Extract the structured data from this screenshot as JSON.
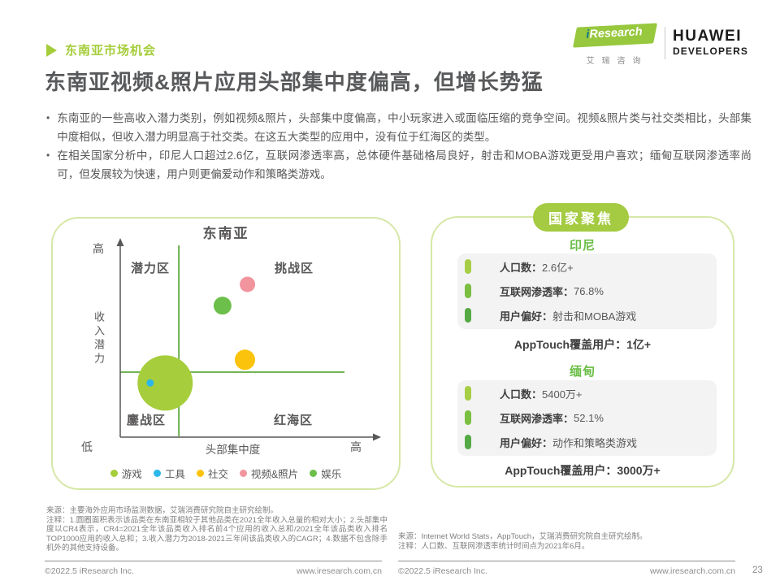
{
  "colors": {
    "accent_green": "#a5cd39",
    "divider_green": "#5ea83e",
    "panel_border_green": "#d6e7a6",
    "country_heading_green": "#6abd45",
    "badge_green": "#a4cb41"
  },
  "header": {
    "section_label": "东南亚市场机会",
    "title": "东南亚视频&照片应用头部集中度偏高，但增长势猛",
    "iresearch": {
      "i": "i",
      "name": "Research",
      "subtitle": "艾瑞咨询"
    },
    "huawei": {
      "line1": "HUAWEI",
      "line2": "DEVELOPERS"
    }
  },
  "bullets": [
    "东南亚的一些高收入潜力类别，例如视频&照片，头部集中度偏高，中小玩家进入或面临压缩的竞争空间。视频&照片类与社交类相比，头部集中度相似，但收入潜力明显高于社交类。在这五大类型的应用中，没有位于红海区的类型。",
    "在相关国家分析中，印尼人口超过2.6亿，互联网渗透率高，总体硬件基础格局良好，射击和MOBA游戏更受用户喜欢；缅甸互联网渗透率尚可，但发展较为快速，用户则更偏爱动作和策略类游戏。"
  ],
  "chart_data": {
    "type": "bubble",
    "title": "东南亚",
    "xlabel": "头部集中度",
    "ylabel": "收入潜力",
    "min_label": "低",
    "x_max_label": "高",
    "y_max_label": "高",
    "quadrants": {
      "top_left": "潜力区",
      "top_right": "挑战区",
      "bottom_left": "鏖战区",
      "bottom_right": "红海区"
    },
    "divider": {
      "x": 0.235,
      "y": 0.336
    },
    "points": [
      {
        "name": "游戏",
        "x": 0.18,
        "y": 0.28,
        "size": 34,
        "color": "#a6cd3b"
      },
      {
        "name": "工具",
        "x": 0.12,
        "y": 0.28,
        "size": 4.5,
        "color": "#2bb7e9"
      },
      {
        "name": "社交",
        "x": 0.5,
        "y": 0.4,
        "size": 12.5,
        "color": "#fcc30c"
      },
      {
        "name": "视频&照片",
        "x": 0.51,
        "y": 0.79,
        "size": 9.5,
        "color": "#f1949d"
      },
      {
        "name": "娱乐",
        "x": 0.41,
        "y": 0.68,
        "size": 11,
        "color": "#6cbf4a"
      }
    ]
  },
  "focus_panel": {
    "badge": "国家聚焦",
    "countries": [
      {
        "name": "印尼",
        "stats": [
          {
            "label": "人口数：",
            "value": "2.6亿+",
            "bar_color": "#a6ce44"
          },
          {
            "label": "互联网渗透率：",
            "value": "76.8%",
            "bar_color": "#7bbf41"
          },
          {
            "label": "用户偏好：",
            "value": "射击和MOBA游戏",
            "bar_color": "#55a944"
          }
        ],
        "coverage": "AppTouch覆盖用户：1亿+"
      },
      {
        "name": "缅甸",
        "stats": [
          {
            "label": "人口数：",
            "value": "5400万+",
            "bar_color": "#a6ce44"
          },
          {
            "label": "互联网渗透率：",
            "value": "52.1%",
            "bar_color": "#7bbf41"
          },
          {
            "label": "用户偏好：",
            "value": "动作和策略类游戏",
            "bar_color": "#55a944"
          }
        ],
        "coverage": "AppTouch覆盖用户：3000万+"
      }
    ]
  },
  "footnotes": {
    "left_source": "来源：主要海外应用市场监测数据，艾瑞消费研究院自主研究绘制。",
    "left_note": "注释：1.圆圈面积表示该品类在东南亚相较于其他品类在2021全年收入总量的相对大小；2.头部集中度以CR4表示，CR4=2021全年该品类收入排名前4个应用的收入总和/2021全年该品类收入排名TOP1000应用的收入总和；3.收入潜力为2018-2021三年间该品类收入的CAGR；4.数据不包含除手机外的其他支持设备。",
    "right_source": "来源：Internet World Stats，AppTouch，艾瑞消费研究院自主研究绘制。",
    "right_note": "注释：人口数、互联网渗透率统计时间点为2021年6月。"
  },
  "footer": {
    "copyright": "©2022.5 iResearch Inc.",
    "website": "www.iresearch.com.cn",
    "page": "23"
  }
}
